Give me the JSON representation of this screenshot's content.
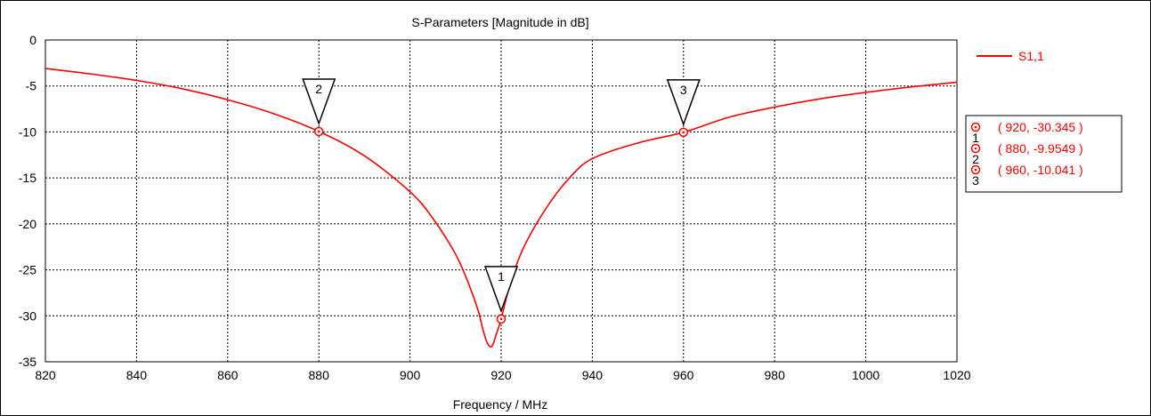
{
  "chart_data": {
    "type": "line",
    "title": "S-Parameters [Magnitude in dB]",
    "xlabel": "Frequency / MHz",
    "ylabel": "",
    "xlim": [
      820,
      1020
    ],
    "ylim": [
      -35,
      0
    ],
    "xticks": [
      820,
      840,
      860,
      880,
      900,
      920,
      940,
      960,
      980,
      1000,
      1020
    ],
    "yticks": [
      0,
      -5,
      -10,
      -15,
      -20,
      -25,
      -30,
      -35
    ],
    "grid": true,
    "legend_position": "top-right",
    "colors": {
      "curve": "#ff0000",
      "axis": "#000000"
    },
    "series": [
      {
        "name": "S1,1",
        "color": "#ff0000",
        "x": [
          820,
          830,
          840,
          850,
          860,
          870,
          880,
          890,
          900,
          905,
          910,
          913,
          915,
          916,
          917,
          918,
          919,
          920,
          922,
          925,
          930,
          935,
          940,
          950,
          960,
          970,
          980,
          990,
          1000,
          1010,
          1020
        ],
        "y": [
          -3.1,
          -3.7,
          -4.4,
          -5.3,
          -6.5,
          -8.0,
          -9.95,
          -12.6,
          -16.5,
          -19.4,
          -23.3,
          -26.7,
          -29.5,
          -31.5,
          -33.0,
          -33.3,
          -31.9,
          -30.345,
          -26.5,
          -22.5,
          -18.2,
          -15.0,
          -12.9,
          -11.2,
          -10.04,
          -8.4,
          -7.3,
          -6.4,
          -5.7,
          -5.1,
          -4.6
        ]
      }
    ],
    "markers": [
      {
        "label": "1",
        "x": 920,
        "y": -30.345,
        "readout": "( 920, -30.345 )"
      },
      {
        "label": "2",
        "x": 880,
        "y": -9.9549,
        "readout": "( 880, -9.9549 )"
      },
      {
        "label": "3",
        "x": 960,
        "y": -10.041,
        "readout": "( 960, -10.041 )"
      }
    ]
  }
}
